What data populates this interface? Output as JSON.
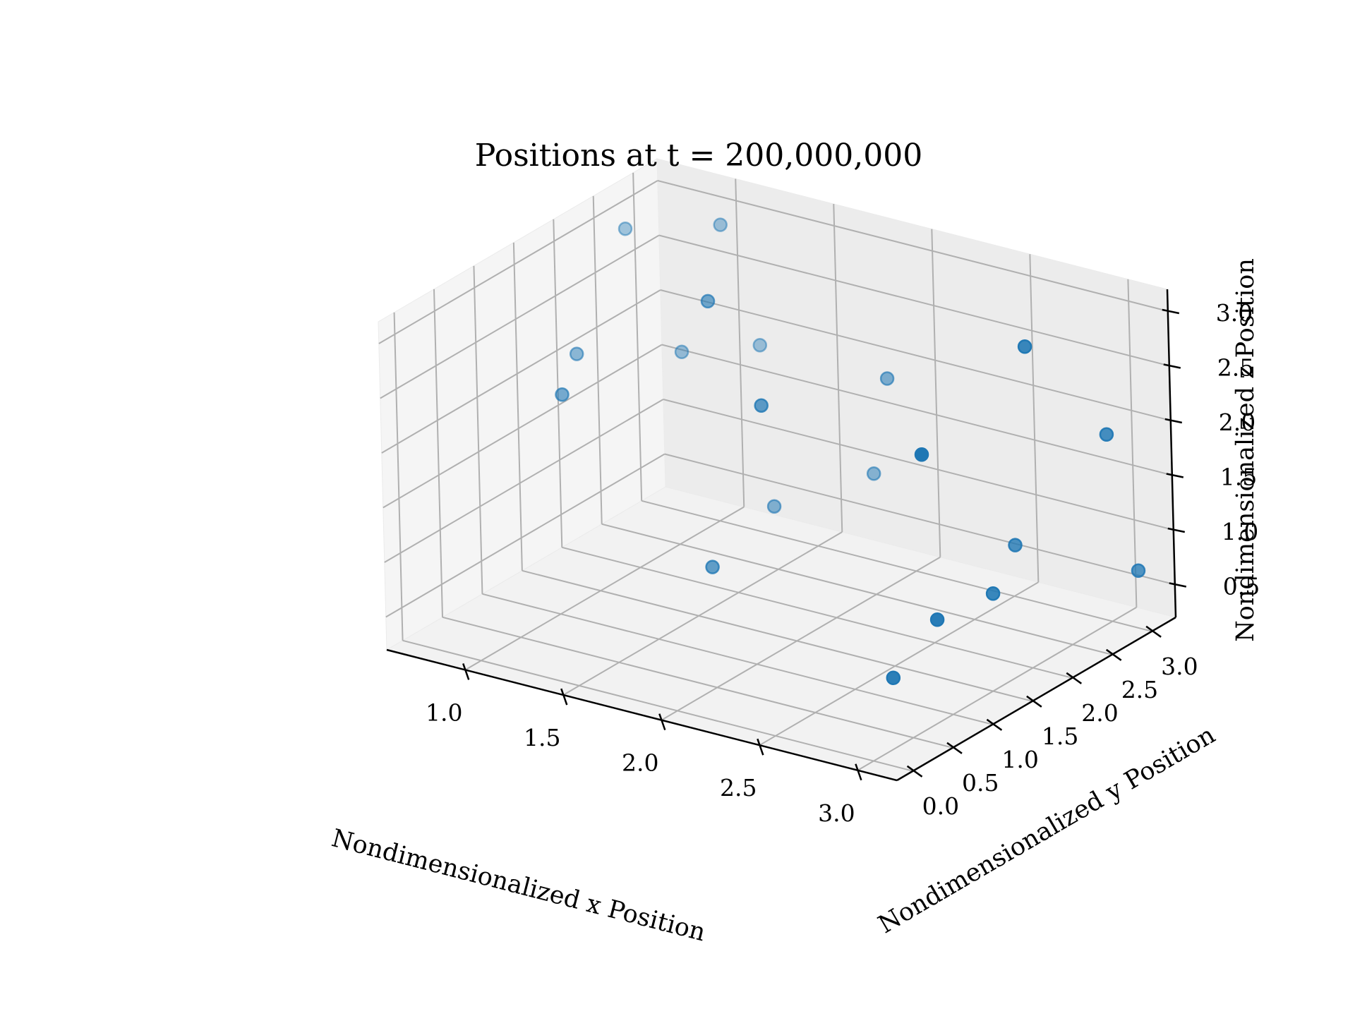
{
  "chart_data": {
    "type": "scatter",
    "projection": "3d",
    "title": "Positions at t = 200,000,000",
    "xlabel": "Nondimensionalized x Position",
    "ylabel": "Nondimensionalized y Position",
    "zlabel": "Nondimensionalized z Position",
    "xticks": [
      "1.0",
      "1.5",
      "2.0",
      "2.5",
      "3.0"
    ],
    "yticks": [
      "0.0",
      "0.5",
      "1.0",
      "1.5",
      "2.0",
      "2.5",
      "3.0"
    ],
    "zticks": [
      "0.5",
      "1.0",
      "1.5",
      "2.0",
      "2.5",
      "3.0"
    ],
    "xlim": [
      0.6,
      3.2
    ],
    "ylim": [
      -0.2,
      3.3
    ],
    "zlim": [
      0.2,
      3.2
    ],
    "grid": true,
    "marker_color": "#1f77b4",
    "points": [
      {
        "x": 0.71,
        "y": 2.62,
        "z": 2.9
      },
      {
        "x": 1.09,
        "y": 2.88,
        "z": 3.0
      },
      {
        "x": 1.24,
        "y": 2.34,
        "z": 2.6
      },
      {
        "x": 0.61,
        "y": 2.22,
        "z": 1.88
      },
      {
        "x": 0.95,
        "y": 2.7,
        "z": 1.85
      },
      {
        "x": 0.65,
        "y": 1.93,
        "z": 1.65
      },
      {
        "x": 1.24,
        "y": 2.97,
        "z": 1.93
      },
      {
        "x": 1.55,
        "y": 2.22,
        "z": 1.84
      },
      {
        "x": 1.88,
        "y": 2.99,
        "z": 1.91
      },
      {
        "x": 2.76,
        "y": 2.58,
        "z": 2.78
      },
      {
        "x": 2.47,
        "y": 1.97,
        "z": 1.92
      },
      {
        "x": 3.01,
        "y": 2.96,
        "z": 1.93
      },
      {
        "x": 1.77,
        "y": 3.06,
        "z": 0.96
      },
      {
        "x": 2.61,
        "y": 2.76,
        "z": 0.82
      },
      {
        "x": 1.4,
        "y": 2.71,
        "z": 0.64
      },
      {
        "x": 1.32,
        "y": 2.12,
        "z": 0.3
      },
      {
        "x": 2.47,
        "y": 2.11,
        "z": 0.35
      },
      {
        "x": 2.61,
        "y": 2.47,
        "z": 0.5
      },
      {
        "x": 3.06,
        "y": 3.19,
        "z": 0.61
      },
      {
        "x": 2.27,
        "y": 2.03,
        "z": -0.24
      }
    ]
  }
}
